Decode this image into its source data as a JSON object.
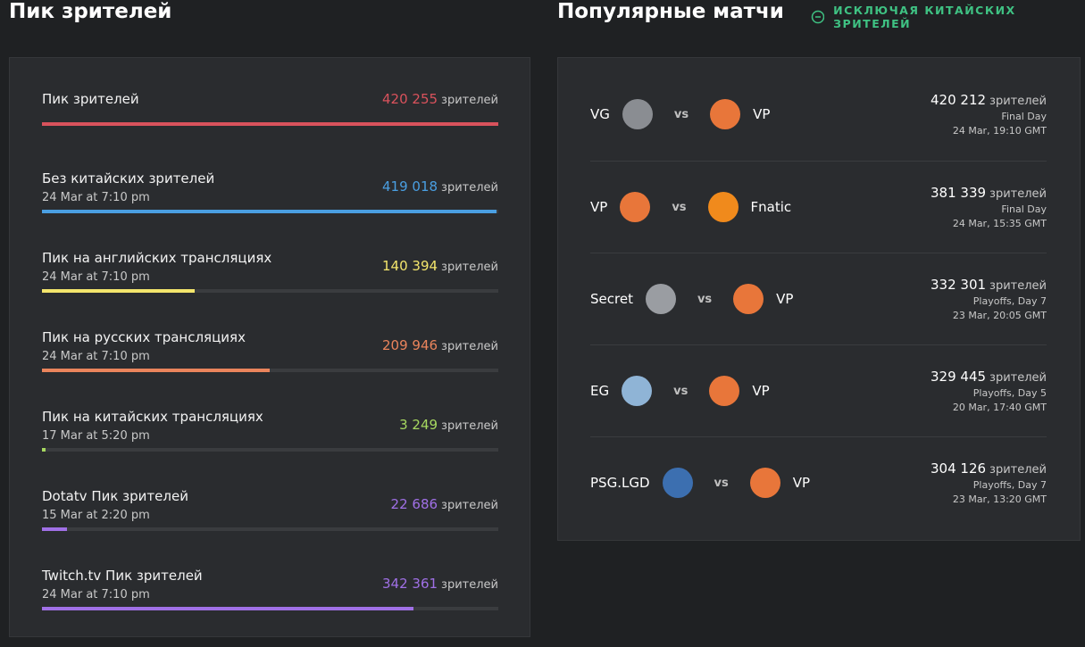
{
  "left": {
    "title": "Пик зрителей",
    "unit": "зрителей",
    "track_color": "#3a3c3f",
    "items": [
      {
        "label": "Пик зрителей",
        "value": 420255,
        "value_label": "420 255",
        "color": "#d9525c"
      },
      {
        "label": "Без китайских зрителей",
        "date": "24 Mar at 7:10 pm",
        "value": 419018,
        "value_label": "419 018",
        "color": "#4a9fe2"
      },
      {
        "label": "Пик на английских трансляциях",
        "date": "24 Mar at 7:10 pm",
        "value": 140394,
        "value_label": "140 394",
        "color": "#f3e56c"
      },
      {
        "label": "Пик на русских трансляциях",
        "date": "24 Mar at 7:10 pm",
        "value": 209946,
        "value_label": "209 946",
        "color": "#ea845c"
      },
      {
        "label": "Пик на китайских трансляциях",
        "date": "17 Mar at 5:20 pm",
        "value": 3249,
        "value_label": "3 249",
        "color": "#a6d860"
      },
      {
        "label": "Dotatv Пик зрителей",
        "date": "15 Mar at 2:20 pm",
        "value": 22686,
        "value_label": "22 686",
        "color": "#a070e6"
      },
      {
        "label": "Twitch.tv Пик зрителей",
        "date": "24 Mar at 7:10 pm",
        "value": 342361,
        "value_label": "342 361",
        "color": "#a070e6"
      }
    ]
  },
  "right": {
    "title": "Популярные матчи",
    "toggle": "ИСКЛЮЧАЯ КИТАЙСКИХ ЗРИТЕЛЕЙ",
    "vs": "vs",
    "unit": "зрителей",
    "matches": [
      {
        "team1": "VG",
        "team1_color": "#8a8d92",
        "team2": "VP",
        "team2_color": "#e8763a",
        "viewers": "420 212",
        "stage": "Final Day",
        "date": "24 Mar, 19:10 GMT"
      },
      {
        "team1": "VP",
        "team1_color": "#e8763a",
        "team2": "Fnatic",
        "team2_color": "#f08a1c",
        "viewers": "381 339",
        "stage": "Final Day",
        "date": "24 Mar, 15:35 GMT"
      },
      {
        "team1": "Secret",
        "team1_color": "#9a9da2",
        "team2": "VP",
        "team2_color": "#e8763a",
        "viewers": "332 301",
        "stage": "Playoffs, Day 7",
        "date": "23 Mar, 20:05 GMT"
      },
      {
        "team1": "EG",
        "team1_color": "#8fb4d6",
        "team2": "VP",
        "team2_color": "#e8763a",
        "viewers": "329 445",
        "stage": "Playoffs, Day 5",
        "date": "20 Mar, 17:40 GMT"
      },
      {
        "team1": "PSG.LGD",
        "team1_color": "#3c6fb0",
        "team2": "VP",
        "team2_color": "#e8763a",
        "viewers": "304 126",
        "stage": "Playoffs, Day 7",
        "date": "23 Mar, 13:20 GMT"
      }
    ]
  }
}
